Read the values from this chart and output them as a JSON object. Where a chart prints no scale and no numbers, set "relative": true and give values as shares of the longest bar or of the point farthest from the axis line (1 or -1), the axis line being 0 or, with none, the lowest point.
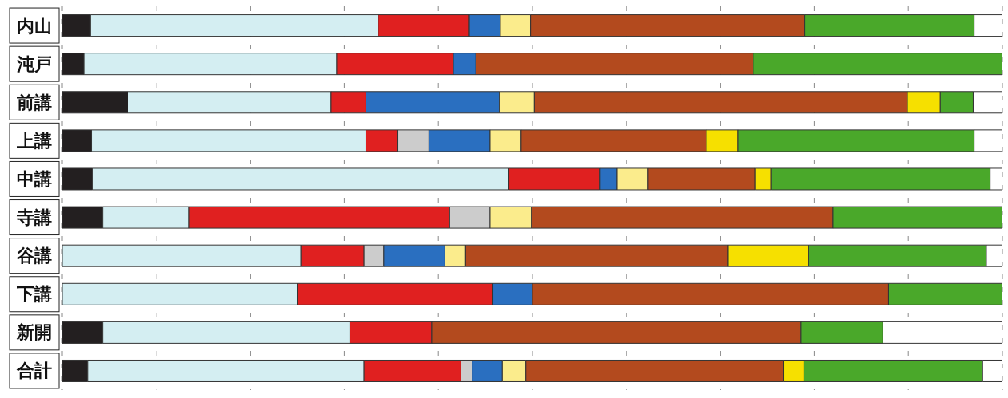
{
  "chart_data": {
    "type": "bar",
    "orientation": "horizontal",
    "stacked": true,
    "relative": true,
    "grid": "x",
    "categories": [
      "内山",
      "沌戸",
      "前講",
      "上講",
      "中講",
      "寺講",
      "谷講",
      "下講",
      "新開",
      "合計"
    ],
    "series": [
      {
        "color": "#231f20",
        "values": [
          0.03,
          0.023,
          0.07,
          0.031,
          0.032,
          0.043,
          null,
          null,
          0.043,
          0.027
        ]
      },
      {
        "color": "#d4eef2",
        "values": [
          0.306,
          0.269,
          0.216,
          0.292,
          0.443,
          0.092,
          0.254,
          0.25,
          0.263,
          0.294
        ]
      },
      {
        "color": "#e02020",
        "values": [
          0.097,
          0.124,
          0.037,
          0.034,
          0.097,
          0.277,
          0.067,
          0.208,
          0.087,
          0.103
        ]
      },
      {
        "color": "#cccccc",
        "values": [
          null,
          null,
          null,
          0.033,
          null,
          0.043,
          0.021,
          null,
          null,
          0.012
        ]
      },
      {
        "color": "#2a6fc0",
        "values": [
          0.033,
          0.024,
          0.142,
          0.065,
          0.018,
          null,
          0.065,
          0.042,
          null,
          0.032
        ]
      },
      {
        "color": "#fbec8c",
        "values": [
          0.032,
          null,
          0.037,
          0.033,
          0.033,
          0.044,
          0.022,
          null,
          null,
          0.025
        ]
      },
      {
        "color": "#b34a1e",
        "values": [
          0.292,
          0.295,
          0.397,
          0.197,
          0.114,
          0.321,
          0.279,
          0.379,
          0.393,
          0.274
        ]
      },
      {
        "color": "#f6e000",
        "values": [
          null,
          null,
          0.035,
          0.034,
          0.017,
          null,
          0.086,
          null,
          null,
          0.022
        ]
      },
      {
        "color": "#4aa82a",
        "values": [
          0.18,
          0.265,
          0.035,
          0.251,
          0.233,
          0.18,
          0.189,
          0.121,
          0.087,
          0.19
        ]
      },
      {
        "color": "#ffffff",
        "values": [
          0.03,
          null,
          0.031,
          0.03,
          0.013,
          null,
          0.017,
          null,
          0.127,
          0.021
        ]
      }
    ]
  }
}
